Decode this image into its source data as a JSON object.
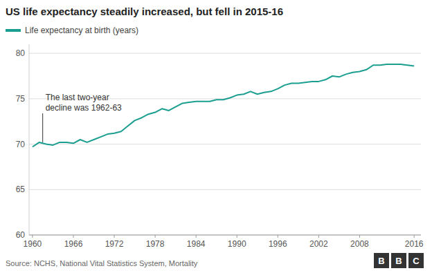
{
  "chart_data": {
    "type": "line",
    "title": "US life expectancy steadily increased, but fell in 2015-16",
    "source": "Source: NCHS, National Vital Statistics System, Mortality",
    "logo": "BBC",
    "x": [
      1960,
      1961,
      1962,
      1963,
      1964,
      1965,
      1966,
      1967,
      1968,
      1969,
      1970,
      1971,
      1972,
      1973,
      1974,
      1975,
      1976,
      1977,
      1978,
      1979,
      1980,
      1981,
      1982,
      1983,
      1984,
      1985,
      1986,
      1987,
      1988,
      1989,
      1990,
      1991,
      1992,
      1993,
      1994,
      1995,
      1996,
      1997,
      1998,
      1999,
      2000,
      2001,
      2002,
      2003,
      2004,
      2005,
      2006,
      2007,
      2008,
      2009,
      2010,
      2011,
      2012,
      2013,
      2014,
      2015,
      2016
    ],
    "series": [
      {
        "name": "Life expectancy at birth (years)",
        "color": "#1a9e8f",
        "values": [
          69.7,
          70.2,
          70.0,
          69.9,
          70.2,
          70.2,
          70.1,
          70.5,
          70.2,
          70.5,
          70.8,
          71.1,
          71.2,
          71.4,
          72.0,
          72.6,
          72.9,
          73.3,
          73.5,
          73.9,
          73.7,
          74.1,
          74.5,
          74.6,
          74.7,
          74.7,
          74.7,
          74.9,
          74.9,
          75.1,
          75.4,
          75.5,
          75.8,
          75.5,
          75.7,
          75.8,
          76.1,
          76.5,
          76.7,
          76.7,
          76.8,
          76.9,
          76.9,
          77.1,
          77.5,
          77.4,
          77.7,
          77.9,
          78.0,
          78.2,
          78.7,
          78.7,
          78.8,
          78.8,
          78.8,
          78.7,
          78.6
        ]
      }
    ],
    "annotations": [
      {
        "text": "The last two-year\ndecline was 1962-63",
        "x": 1961.5,
        "y": 70.2
      }
    ],
    "xlim": [
      1959.5,
      2017
    ],
    "ylim": [
      60,
      81
    ],
    "xticks": [
      1960,
      1966,
      1972,
      1978,
      1984,
      1990,
      1996,
      2002,
      2008,
      2016
    ],
    "yticks": [
      60,
      65,
      70,
      75,
      80
    ],
    "grid": true
  }
}
